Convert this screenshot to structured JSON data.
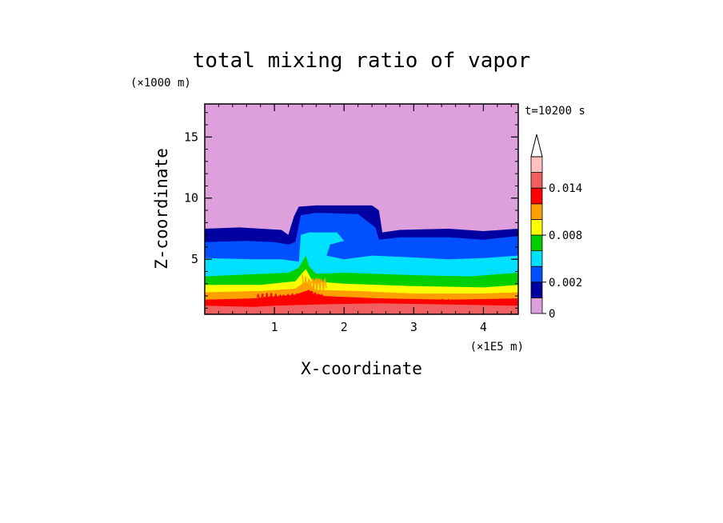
{
  "chart_data": {
    "type": "contour",
    "title": "total mixing ratio of vapor",
    "xlabel": "X-coordinate",
    "ylabel": "Z-coordinate",
    "x_unit": "(×1E5 m)",
    "y_unit": "(×1000 m)",
    "time_label": "t=10200 s",
    "xlim": [
      0,
      4.5
    ],
    "ylim": [
      0.5,
      17.7
    ],
    "x_ticks": [
      "1",
      "2",
      "3",
      "4"
    ],
    "x_tick_values": [
      1,
      2,
      3,
      4
    ],
    "y_ticks": [
      "5",
      "10",
      "15"
    ],
    "y_tick_values": [
      5,
      10,
      15
    ],
    "colorbar": {
      "levels": [
        0,
        0.001,
        0.002,
        0.004,
        0.006,
        0.008,
        0.01,
        0.012,
        0.014,
        0.016
      ],
      "labels": [
        "0",
        "0.002",
        "0.008",
        "0.014"
      ],
      "label_values": [
        0,
        0.002,
        0.008,
        0.014
      ],
      "colors": [
        "#dda0dd",
        "#0000a0",
        "#0050ff",
        "#00e0ff",
        "#00d000",
        "#ffff00",
        "#ffa000",
        "#ff0000",
        "#f06060",
        "#ffc0c0"
      ],
      "extend": "max"
    },
    "bands": [
      {
        "level": 0.0,
        "color": "#dda0dd",
        "top": [
          [
            0,
            17.7
          ],
          [
            4.5,
            17.7
          ]
        ]
      },
      {
        "level": 0.001,
        "color": "#0000a0",
        "top": [
          [
            0,
            7.5
          ],
          [
            0.5,
            7.6
          ],
          [
            1.1,
            7.4
          ],
          [
            1.2,
            7.0
          ],
          [
            1.28,
            8.5
          ],
          [
            1.35,
            9.3
          ],
          [
            1.6,
            9.4
          ],
          [
            2.4,
            9.4
          ],
          [
            2.5,
            9.0
          ],
          [
            2.55,
            7.2
          ],
          [
            2.8,
            7.4
          ],
          [
            3.5,
            7.5
          ],
          [
            4.0,
            7.3
          ],
          [
            4.5,
            7.5
          ]
        ]
      },
      {
        "level": 0.002,
        "color": "#0050ff",
        "top": [
          [
            0,
            6.4
          ],
          [
            0.6,
            6.5
          ],
          [
            1.0,
            6.4
          ],
          [
            1.2,
            6.2
          ],
          [
            1.3,
            6.4
          ],
          [
            1.38,
            8.6
          ],
          [
            1.6,
            8.8
          ],
          [
            2.2,
            8.7
          ],
          [
            2.45,
            7.6
          ],
          [
            2.5,
            6.6
          ],
          [
            2.8,
            6.8
          ],
          [
            3.5,
            6.8
          ],
          [
            4.0,
            6.6
          ],
          [
            4.5,
            6.9
          ]
        ]
      },
      {
        "level": 0.004,
        "color": "#00e0ff",
        "top": [
          [
            0,
            5.1
          ],
          [
            0.7,
            5.0
          ],
          [
            1.1,
            5.0
          ],
          [
            1.35,
            4.8
          ],
          [
            1.38,
            7.0
          ],
          [
            1.5,
            7.2
          ],
          [
            1.9,
            7.2
          ],
          [
            2.0,
            6.5
          ],
          [
            1.8,
            6.2
          ],
          [
            1.75,
            5.3
          ],
          [
            2.0,
            5.0
          ],
          [
            2.4,
            5.3
          ],
          [
            2.8,
            5.2
          ],
          [
            3.5,
            5.0
          ],
          [
            4.0,
            5.1
          ],
          [
            4.5,
            5.3
          ]
        ]
      },
      {
        "level": 0.006,
        "color": "#00d000",
        "top": [
          [
            0,
            3.6
          ],
          [
            0.8,
            3.8
          ],
          [
            1.2,
            3.9
          ],
          [
            1.35,
            4.3
          ],
          [
            1.45,
            5.3
          ],
          [
            1.5,
            4.4
          ],
          [
            1.6,
            3.8
          ],
          [
            2.0,
            3.9
          ],
          [
            3.0,
            3.7
          ],
          [
            3.8,
            3.6
          ],
          [
            4.5,
            3.9
          ]
        ]
      },
      {
        "level": 0.008,
        "color": "#ffff00",
        "top": [
          [
            0,
            2.9
          ],
          [
            0.8,
            2.9
          ],
          [
            1.3,
            3.2
          ],
          [
            1.45,
            4.2
          ],
          [
            1.55,
            3.2
          ],
          [
            2.0,
            3.0
          ],
          [
            3.0,
            2.8
          ],
          [
            4.0,
            2.7
          ],
          [
            4.5,
            2.9
          ]
        ]
      },
      {
        "level": 0.01,
        "color": "#ffa000",
        "top": [
          [
            0,
            2.3
          ],
          [
            0.8,
            2.4
          ],
          [
            1.3,
            2.6
          ],
          [
            1.45,
            3.2
          ],
          [
            1.6,
            2.5
          ],
          [
            2.2,
            2.4
          ],
          [
            3.0,
            2.2
          ],
          [
            4.0,
            2.2
          ],
          [
            4.5,
            2.3
          ]
        ]
      },
      {
        "level": 0.012,
        "color": "#ff0000",
        "top": [
          [
            0,
            1.7
          ],
          [
            0.7,
            1.8
          ],
          [
            1.3,
            2.1
          ],
          [
            1.5,
            2.5
          ],
          [
            1.7,
            2.0
          ],
          [
            2.5,
            1.8
          ],
          [
            3.5,
            1.7
          ],
          [
            4.5,
            1.8
          ]
        ]
      },
      {
        "level": 0.014,
        "color": "#f06060",
        "top": [
          [
            0,
            1.2
          ],
          [
            0.7,
            1.1
          ],
          [
            1.0,
            1.2
          ],
          [
            1.6,
            1.3
          ],
          [
            2.5,
            1.4
          ],
          [
            3.5,
            1.3
          ],
          [
            4.5,
            1.2
          ]
        ]
      }
    ]
  }
}
